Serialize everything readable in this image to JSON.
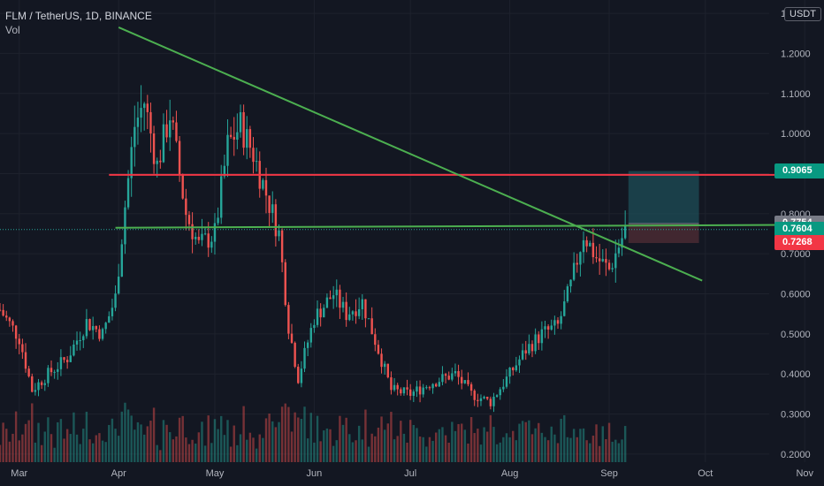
{
  "header": {
    "symbol_line": "FLM / TetherUS, 1D, BINANCE",
    "indicator": "Vol",
    "currency": "USDT"
  },
  "colors": {
    "background": "#131722",
    "grid": "#1e222d",
    "up_candle": "#26a69a",
    "down_candle": "#ef5350",
    "trendline": "#4caf50",
    "resistance_line": "#f23645",
    "target_zone": "#1e4d57",
    "stop_zone": "#4a2a32",
    "axis_text": "#b2b5be"
  },
  "price_axis": {
    "ticks": [
      "1.3000",
      "1.2000",
      "1.1000",
      "1.0000",
      "0.9000",
      "0.8000",
      "0.7000",
      "0.6000",
      "0.5000",
      "0.4000",
      "0.3000",
      "0.2000"
    ]
  },
  "time_axis": {
    "ticks": [
      "Mar",
      "Apr",
      "May",
      "Jun",
      "Jul",
      "Aug",
      "Sep",
      "Oct",
      "Nov"
    ]
  },
  "price_labels": [
    {
      "name": "target-price-tag",
      "value": "0.9065",
      "color": "#089981",
      "price": 0.9065
    },
    {
      "name": "entry-price-tag",
      "value": "0.7754",
      "color": "#787b86",
      "price": 0.7754
    },
    {
      "name": "last-price-tag",
      "value": "0.7604",
      "color": "#089981",
      "price": 0.7604
    },
    {
      "name": "stop-price-tag",
      "value": "0.7268",
      "color": "#f23645",
      "price": 0.7268
    }
  ],
  "chart_data": {
    "type": "candlestick",
    "title": "FLM / TetherUS, 1D, BINANCE",
    "ylim": [
      0.18,
      1.32
    ],
    "x_range": [
      "Feb 23",
      "Nov 7"
    ],
    "y_scale": "linear",
    "grid": true,
    "price_path": [
      {
        "date": "Feb 23",
        "close": 0.56
      },
      {
        "date": "Mar 1",
        "close": 0.49
      },
      {
        "date": "Mar 5",
        "close": 0.36
      },
      {
        "date": "Mar 10",
        "close": 0.4
      },
      {
        "date": "Mar 16",
        "close": 0.44
      },
      {
        "date": "Mar 22",
        "close": 0.53
      },
      {
        "date": "Mar 27",
        "close": 0.5
      },
      {
        "date": "Mar 31",
        "close": 0.59
      },
      {
        "date": "Apr 3",
        "close": 0.82
      },
      {
        "date": "Apr 6",
        "close": 1.02
      },
      {
        "date": "Apr 9",
        "close": 1.08
      },
      {
        "date": "Apr 13",
        "close": 0.92
      },
      {
        "date": "Apr 17",
        "close": 1.05
      },
      {
        "date": "Apr 22",
        "close": 0.8
      },
      {
        "date": "Apr 26",
        "close": 0.72
      },
      {
        "date": "May 1",
        "close": 0.75
      },
      {
        "date": "May 5",
        "close": 0.97
      },
      {
        "date": "May 9",
        "close": 1.02
      },
      {
        "date": "May 13",
        "close": 0.95
      },
      {
        "date": "May 17",
        "close": 0.85
      },
      {
        "date": "May 21",
        "close": 0.75
      },
      {
        "date": "May 24",
        "close": 0.52
      },
      {
        "date": "May 27",
        "close": 0.39
      },
      {
        "date": "Jun 1",
        "close": 0.54
      },
      {
        "date": "Jun 7",
        "close": 0.6
      },
      {
        "date": "Jun 11",
        "close": 0.55
      },
      {
        "date": "Jun 16",
        "close": 0.58
      },
      {
        "date": "Jun 21",
        "close": 0.46
      },
      {
        "date": "Jun 25",
        "close": 0.36
      },
      {
        "date": "Jul 1",
        "close": 0.35
      },
      {
        "date": "Jul 8",
        "close": 0.38
      },
      {
        "date": "Jul 15",
        "close": 0.4
      },
      {
        "date": "Jul 20",
        "close": 0.35
      },
      {
        "date": "Jul 26",
        "close": 0.33
      },
      {
        "date": "Aug 1",
        "close": 0.4
      },
      {
        "date": "Aug 6",
        "close": 0.46
      },
      {
        "date": "Aug 11",
        "close": 0.5
      },
      {
        "date": "Aug 16",
        "close": 0.52
      },
      {
        "date": "Aug 20",
        "close": 0.62
      },
      {
        "date": "Aug 24",
        "close": 0.75
      },
      {
        "date": "Aug 28",
        "close": 0.69
      },
      {
        "date": "Sep 1",
        "close": 0.66
      },
      {
        "date": "Sep 6",
        "close": 0.7604
      }
    ],
    "drawings": {
      "downtrend_line": {
        "from": {
          "date": "Apr 1",
          "price": 1.265
        },
        "to": {
          "date": "Sep 30",
          "price": 0.633
        }
      },
      "support_line": {
        "from": {
          "date": "Mar 31",
          "price": 0.765
        },
        "to": {
          "date": "Oct 28",
          "price": 0.772
        }
      },
      "resistance_line": {
        "from": {
          "date": "Mar 29",
          "price": 0.897
        },
        "to": {
          "date": "Oct 24",
          "price": 0.897
        }
      },
      "long_position": {
        "start": "Sep 7",
        "end": "Sep 29",
        "entry": 0.7754,
        "target": 0.9065,
        "stop": 0.7268
      }
    }
  }
}
